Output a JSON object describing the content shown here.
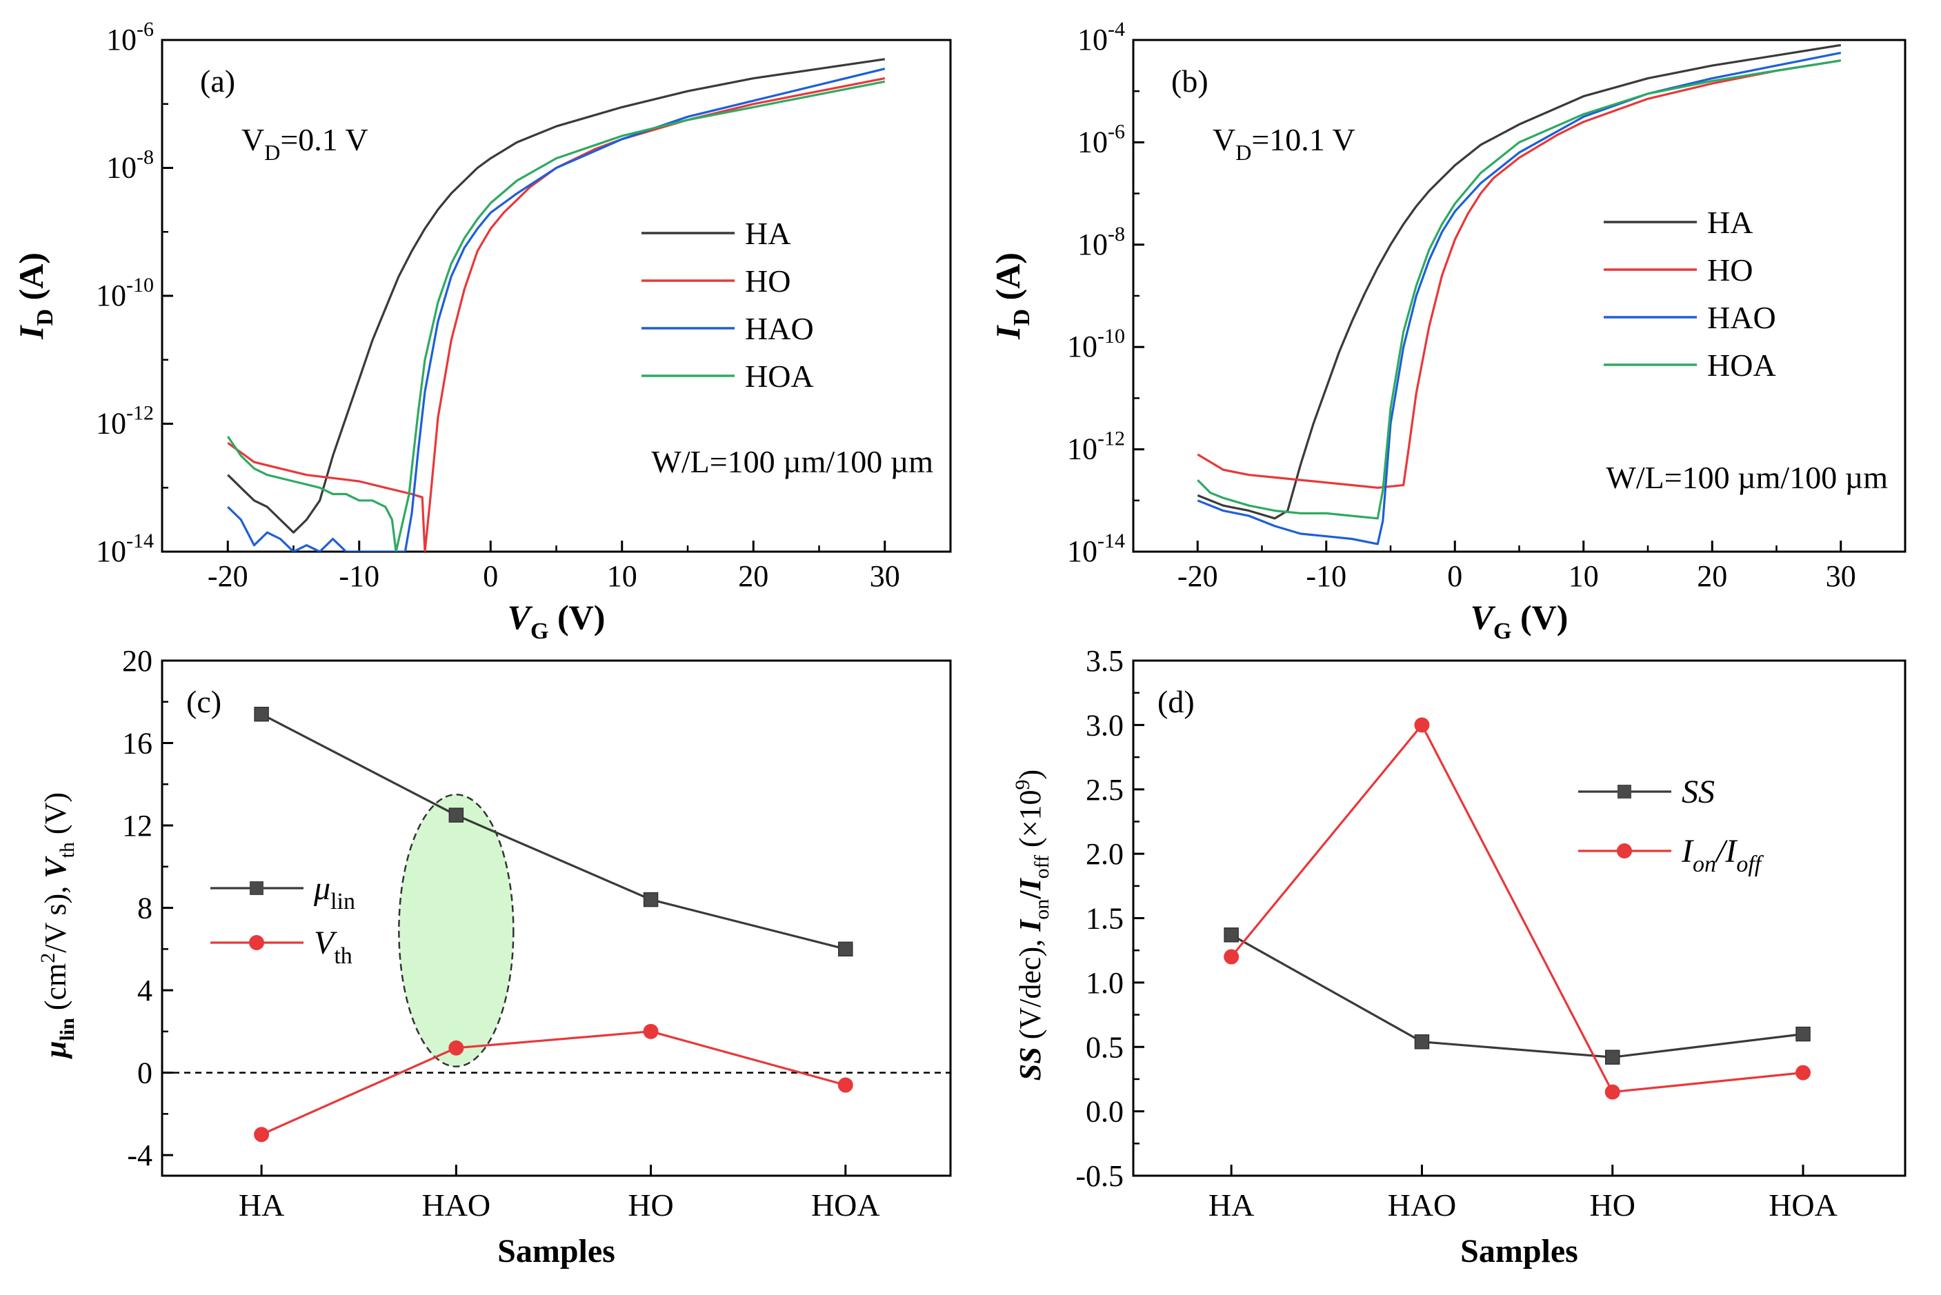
{
  "chart_data": [
    {
      "panel_label": "(a)",
      "type": "line",
      "log_y": true,
      "xlabel": "V",
      "xlabel_sub": "G",
      "xlabel_unit": " (V)",
      "ylabel": "I",
      "ylabel_sub": "D",
      "ylabel_unit": " (A)",
      "xlim": [
        -25,
        35
      ],
      "ylim_exp": [
        -14,
        -6
      ],
      "xticks": [
        -20,
        -10,
        0,
        10,
        20,
        30
      ],
      "xtick_labels": [
        "-20",
        "-10",
        "0",
        "10",
        "20",
        "30"
      ],
      "ytick_exp": [
        -14,
        -12,
        -10,
        -8,
        -6
      ],
      "ytick_labels": [
        "-14",
        "-12",
        "-10",
        "-8",
        "-6"
      ],
      "ytick_base": "10",
      "annotation_vd": {
        "main": "V",
        "sub": "D",
        "rest": "=0.1 V"
      },
      "annotation_wl": "W/L=100 µm/100 µm",
      "legend_position": "center-right",
      "series": [
        {
          "name": "HA",
          "color": "#3a3a3a",
          "points": [
            [
              -20,
              -12.8
            ],
            [
              -19,
              -13.0
            ],
            [
              -18,
              -13.2
            ],
            [
              -17,
              -13.3
            ],
            [
              -16,
              -13.5
            ],
            [
              -15,
              -13.7
            ],
            [
              -14,
              -13.5
            ],
            [
              -13,
              -13.2
            ],
            [
              -12,
              -12.5
            ],
            [
              -11,
              -11.9
            ],
            [
              -10,
              -11.3
            ],
            [
              -9,
              -10.7
            ],
            [
              -8,
              -10.2
            ],
            [
              -7,
              -9.7
            ],
            [
              -6,
              -9.3
            ],
            [
              -5,
              -8.95
            ],
            [
              -4,
              -8.65
            ],
            [
              -3,
              -8.4
            ],
            [
              -2,
              -8.2
            ],
            [
              -1,
              -8.0
            ],
            [
              0,
              -7.85
            ],
            [
              2,
              -7.6
            ],
            [
              5,
              -7.35
            ],
            [
              10,
              -7.05
            ],
            [
              15,
              -6.8
            ],
            [
              20,
              -6.6
            ],
            [
              25,
              -6.45
            ],
            [
              30,
              -6.3
            ]
          ]
        },
        {
          "name": "HO",
          "color": "#e8383a",
          "points": [
            [
              -20,
              -12.3
            ],
            [
              -18,
              -12.6
            ],
            [
              -16,
              -12.7
            ],
            [
              -14,
              -12.8
            ],
            [
              -12,
              -12.85
            ],
            [
              -10,
              -12.9
            ],
            [
              -8,
              -13.0
            ],
            [
              -6,
              -13.1
            ],
            [
              -5.2,
              -13.15
            ],
            [
              -5,
              -14.0
            ],
            [
              -4.6,
              -13.2
            ],
            [
              -4,
              -11.9
            ],
            [
              -3,
              -10.7
            ],
            [
              -2,
              -9.9
            ],
            [
              -1,
              -9.3
            ],
            [
              0,
              -8.95
            ],
            [
              1,
              -8.7
            ],
            [
              2,
              -8.5
            ],
            [
              3,
              -8.3
            ],
            [
              5,
              -8.0
            ],
            [
              8,
              -7.7
            ],
            [
              10,
              -7.55
            ],
            [
              15,
              -7.25
            ],
            [
              20,
              -7.0
            ],
            [
              25,
              -6.8
            ],
            [
              30,
              -6.6
            ]
          ]
        },
        {
          "name": "HAO",
          "color": "#1e5fd8",
          "points": [
            [
              -20,
              -13.3
            ],
            [
              -19,
              -13.5
            ],
            [
              -18,
              -13.9
            ],
            [
              -17,
              -13.7
            ],
            [
              -16,
              -13.8
            ],
            [
              -15,
              -14.0
            ],
            [
              -14,
              -13.9
            ],
            [
              -13,
              -14.0
            ],
            [
              -12,
              -13.8
            ],
            [
              -11,
              -14.0
            ],
            [
              -6.5,
              -14.0
            ],
            [
              -6,
              -13.4
            ],
            [
              -5.5,
              -12.4
            ],
            [
              -5,
              -11.5
            ],
            [
              -4,
              -10.4
            ],
            [
              -3,
              -9.7
            ],
            [
              -2,
              -9.25
            ],
            [
              -1,
              -8.95
            ],
            [
              0,
              -8.7
            ],
            [
              2,
              -8.4
            ],
            [
              5,
              -8.0
            ],
            [
              10,
              -7.55
            ],
            [
              15,
              -7.2
            ],
            [
              20,
              -6.95
            ],
            [
              25,
              -6.7
            ],
            [
              30,
              -6.45
            ]
          ]
        },
        {
          "name": "HOA",
          "color": "#2eaa62",
          "points": [
            [
              -20,
              -12.2
            ],
            [
              -19,
              -12.5
            ],
            [
              -18,
              -12.7
            ],
            [
              -17,
              -12.8
            ],
            [
              -16,
              -12.85
            ],
            [
              -15,
              -12.9
            ],
            [
              -14,
              -12.95
            ],
            [
              -13,
              -13.0
            ],
            [
              -12,
              -13.1
            ],
            [
              -11,
              -13.1
            ],
            [
              -10,
              -13.2
            ],
            [
              -9,
              -13.2
            ],
            [
              -8,
              -13.3
            ],
            [
              -7.5,
              -13.5
            ],
            [
              -7.2,
              -14.0
            ],
            [
              -6.2,
              -13.1
            ],
            [
              -6,
              -12.7
            ],
            [
              -5.5,
              -11.8
            ],
            [
              -5,
              -11.0
            ],
            [
              -4,
              -10.1
            ],
            [
              -3,
              -9.5
            ],
            [
              -2,
              -9.1
            ],
            [
              -1,
              -8.8
            ],
            [
              0,
              -8.55
            ],
            [
              2,
              -8.2
            ],
            [
              5,
              -7.85
            ],
            [
              10,
              -7.5
            ],
            [
              15,
              -7.25
            ],
            [
              20,
              -7.05
            ],
            [
              25,
              -6.85
            ],
            [
              30,
              -6.65
            ]
          ]
        }
      ]
    },
    {
      "panel_label": "(b)",
      "type": "line",
      "log_y": true,
      "xlabel": "V",
      "xlabel_sub": "G",
      "xlabel_unit": " (V)",
      "ylabel": "I",
      "ylabel_sub": "D",
      "ylabel_unit": " (A)",
      "xlim": [
        -25,
        35
      ],
      "ylim_exp": [
        -14,
        -4
      ],
      "xticks": [
        -20,
        -10,
        0,
        10,
        20,
        30
      ],
      "xtick_labels": [
        "-20",
        "-10",
        "0",
        "10",
        "20",
        "30"
      ],
      "ytick_exp": [
        -14,
        -12,
        -10,
        -8,
        -6,
        -4
      ],
      "ytick_labels": [
        "-14",
        "-12",
        "-10",
        "-8",
        "-6",
        "-4"
      ],
      "ytick_base": "10",
      "annotation_vd": {
        "main": "V",
        "sub": "D",
        "rest": "=10.1 V"
      },
      "annotation_wl": "W/L=100 µm/100 µm",
      "legend_position": "center-right",
      "series": [
        {
          "name": "HA",
          "color": "#3a3a3a",
          "points": [
            [
              -20,
              -12.9
            ],
            [
              -18,
              -13.1
            ],
            [
              -16,
              -13.2
            ],
            [
              -14,
              -13.35
            ],
            [
              -13,
              -13.2
            ],
            [
              -12,
              -12.3
            ],
            [
              -11,
              -11.5
            ],
            [
              -10,
              -10.8
            ],
            [
              -9,
              -10.1
            ],
            [
              -8,
              -9.5
            ],
            [
              -7,
              -8.95
            ],
            [
              -6,
              -8.45
            ],
            [
              -5,
              -8.0
            ],
            [
              -4,
              -7.6
            ],
            [
              -3,
              -7.25
            ],
            [
              -2,
              -6.95
            ],
            [
              -1,
              -6.7
            ],
            [
              0,
              -6.45
            ],
            [
              2,
              -6.05
            ],
            [
              5,
              -5.65
            ],
            [
              10,
              -5.1
            ],
            [
              15,
              -4.75
            ],
            [
              20,
              -4.5
            ],
            [
              25,
              -4.3
            ],
            [
              30,
              -4.1
            ]
          ]
        },
        {
          "name": "HO",
          "color": "#e8383a",
          "points": [
            [
              -20,
              -12.1
            ],
            [
              -18,
              -12.4
            ],
            [
              -16,
              -12.5
            ],
            [
              -14,
              -12.55
            ],
            [
              -12,
              -12.6
            ],
            [
              -10,
              -12.65
            ],
            [
              -8,
              -12.7
            ],
            [
              -6,
              -12.75
            ],
            [
              -4,
              -12.7
            ],
            [
              -3.6,
              -12.0
            ],
            [
              -3,
              -10.9
            ],
            [
              -2,
              -9.6
            ],
            [
              -1,
              -8.6
            ],
            [
              0,
              -7.9
            ],
            [
              1,
              -7.4
            ],
            [
              2,
              -7.0
            ],
            [
              3,
              -6.7
            ],
            [
              5,
              -6.3
            ],
            [
              8,
              -5.85
            ],
            [
              10,
              -5.6
            ],
            [
              15,
              -5.15
            ],
            [
              20,
              -4.85
            ],
            [
              25,
              -4.6
            ],
            [
              30,
              -4.4
            ]
          ]
        },
        {
          "name": "HAO",
          "color": "#1e5fd8",
          "points": [
            [
              -20,
              -13.0
            ],
            [
              -18,
              -13.2
            ],
            [
              -16,
              -13.3
            ],
            [
              -14,
              -13.5
            ],
            [
              -12,
              -13.65
            ],
            [
              -10,
              -13.7
            ],
            [
              -8,
              -13.75
            ],
            [
              -6,
              -13.85
            ],
            [
              -5.6,
              -13.4
            ],
            [
              -5,
              -11.5
            ],
            [
              -4,
              -10.0
            ],
            [
              -3,
              -9.0
            ],
            [
              -2,
              -8.3
            ],
            [
              -1,
              -7.75
            ],
            [
              0,
              -7.35
            ],
            [
              2,
              -6.8
            ],
            [
              5,
              -6.2
            ],
            [
              10,
              -5.5
            ],
            [
              15,
              -5.05
            ],
            [
              20,
              -4.75
            ],
            [
              25,
              -4.5
            ],
            [
              30,
              -4.25
            ]
          ]
        },
        {
          "name": "HOA",
          "color": "#2eaa62",
          "points": [
            [
              -20,
              -12.6
            ],
            [
              -19,
              -12.85
            ],
            [
              -18,
              -12.95
            ],
            [
              -16,
              -13.1
            ],
            [
              -14,
              -13.2
            ],
            [
              -12,
              -13.25
            ],
            [
              -10,
              -13.25
            ],
            [
              -8,
              -13.3
            ],
            [
              -6,
              -13.35
            ],
            [
              -5.6,
              -12.8
            ],
            [
              -5,
              -11.2
            ],
            [
              -4,
              -9.7
            ],
            [
              -3,
              -8.8
            ],
            [
              -2,
              -8.1
            ],
            [
              -1,
              -7.6
            ],
            [
              0,
              -7.2
            ],
            [
              2,
              -6.6
            ],
            [
              5,
              -6.0
            ],
            [
              10,
              -5.45
            ],
            [
              15,
              -5.05
            ],
            [
              20,
              -4.8
            ],
            [
              25,
              -4.6
            ],
            [
              30,
              -4.4
            ]
          ]
        }
      ]
    },
    {
      "panel_label": "(c)",
      "type": "line",
      "categories": [
        "HA",
        "HAO",
        "HO",
        "HOA"
      ],
      "xlabel": "Samples",
      "ylim": [
        -5,
        20
      ],
      "yticks": [
        -4,
        0,
        4,
        8,
        12,
        16,
        20
      ],
      "ytick_labels": [
        "-4",
        "0",
        "4",
        "8",
        "12",
        "16",
        "20"
      ],
      "ylabel_parts": {
        "mu": "μ",
        "mu_sub": "lin",
        "mid": " (cm",
        "sup": "2",
        "mid2": "/V s), ",
        "v": "V",
        "v_sub": "th",
        "end": " (V)"
      },
      "reference_line": 0,
      "highlight_category": "HAO",
      "legend_position": "center-left",
      "series": [
        {
          "name": "μ",
          "name_sub": "lin",
          "color": "#3a3a3a",
          "marker": "square",
          "values": [
            17.4,
            12.5,
            8.4,
            6.0
          ]
        },
        {
          "name": "V",
          "name_sub": "th",
          "color": "#e8383a",
          "marker": "circle",
          "values": [
            -3.0,
            1.2,
            2.0,
            -0.6
          ]
        }
      ]
    },
    {
      "panel_label": "(d)",
      "type": "line",
      "categories": [
        "HA",
        "HAO",
        "HO",
        "HOA"
      ],
      "xlabel": "Samples",
      "ylim": [
        -0.5,
        3.5
      ],
      "yticks": [
        -0.5,
        0.0,
        0.5,
        1.0,
        1.5,
        2.0,
        2.5,
        3.0,
        3.5
      ],
      "ytick_labels": [
        "-0.5",
        "0.0",
        "0.5",
        "1.0",
        "1.5",
        "2.0",
        "2.5",
        "3.0",
        "3.5"
      ],
      "ylabel_parts": {
        "ss": "SS",
        "a": " (V/dec), ",
        "i1": "I",
        "s1": "on",
        "slash": "/",
        "i2": "I",
        "s2": "off",
        "b": " (×10",
        "sup": "9",
        "c": ")"
      },
      "legend_position": "upper-right",
      "series": [
        {
          "name": "SS",
          "color": "#3a3a3a",
          "marker": "square",
          "values": [
            1.37,
            0.54,
            0.42,
            0.6
          ]
        },
        {
          "name": "I",
          "name_sub": "on",
          "name_mid": "/I",
          "name_sub2": "off",
          "color": "#e8383a",
          "marker": "circle",
          "values": [
            1.2,
            3.0,
            0.15,
            0.3
          ]
        }
      ]
    }
  ]
}
